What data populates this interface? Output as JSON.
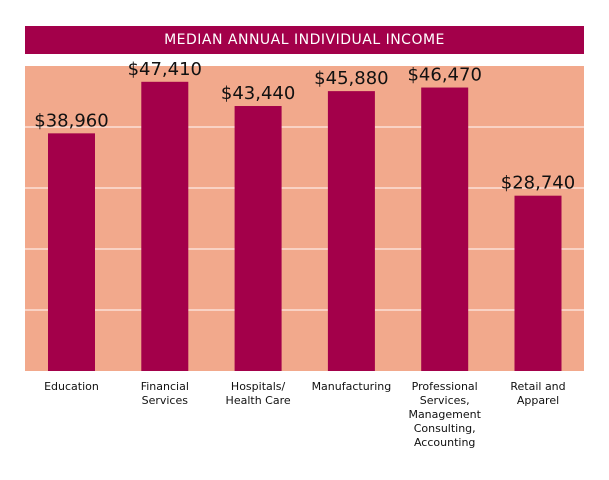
{
  "chart_data": {
    "type": "bar",
    "title": "MEDIAN ANNUAL INDIVIDUAL INCOME",
    "categories": [
      "Education",
      "Financial\nServices",
      "Hospitals/\nHealth Care",
      "Manufacturing",
      "Professional\nServices,\nManagement\nConsulting,\nAccounting",
      "Retail and\nApparel"
    ],
    "values": [
      38960,
      47410,
      43440,
      45880,
      46470,
      28740
    ],
    "value_labels": [
      "$38,960",
      "$47,410",
      "$43,440",
      "$45,880",
      "$46,470",
      "$28,740"
    ],
    "xlabel": "",
    "ylabel": "",
    "ylim": [
      0,
      50000
    ],
    "grid": true,
    "gridlines": [
      10000,
      20000,
      30000,
      40000
    ],
    "colors": {
      "bar": "#a3004a",
      "background": "#f2a98c",
      "title_bar": "#a3004a",
      "grid": "#fbe0d6"
    }
  }
}
